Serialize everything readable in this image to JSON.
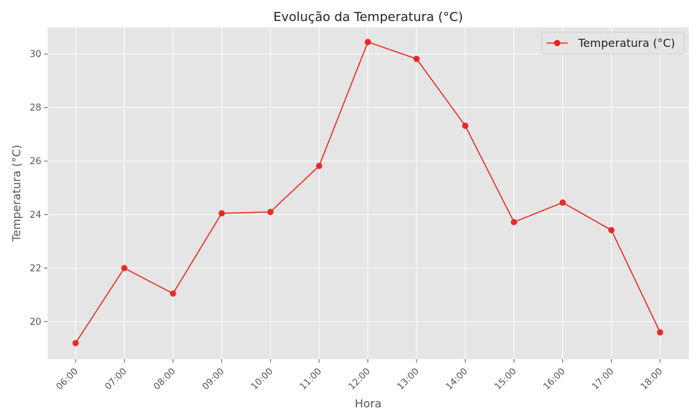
{
  "chart_data": {
    "type": "line",
    "title": "Evolução da Temperatura (°C)",
    "xlabel": "Hora",
    "ylabel": "Temperatura (°C)",
    "categories": [
      "06:00",
      "07:00",
      "08:00",
      "09:00",
      "10:00",
      "11:00",
      "12:00",
      "13:00",
      "14:00",
      "15:00",
      "16:00",
      "17:00",
      "18:00"
    ],
    "series": [
      {
        "name": "Temperatura (°C)",
        "values": [
          19.2,
          22.0,
          21.05,
          24.05,
          24.1,
          25.82,
          30.45,
          29.82,
          27.32,
          23.72,
          24.45,
          23.42,
          19.6
        ],
        "color": "#e8231f"
      }
    ],
    "ylim": [
      18.6,
      31.0
    ],
    "yticks": [
      20,
      22,
      24,
      26,
      28,
      30
    ],
    "grid": true,
    "legend_position": "top-right",
    "background": "#e5e5e5",
    "grid_color": "#ffffff"
  }
}
